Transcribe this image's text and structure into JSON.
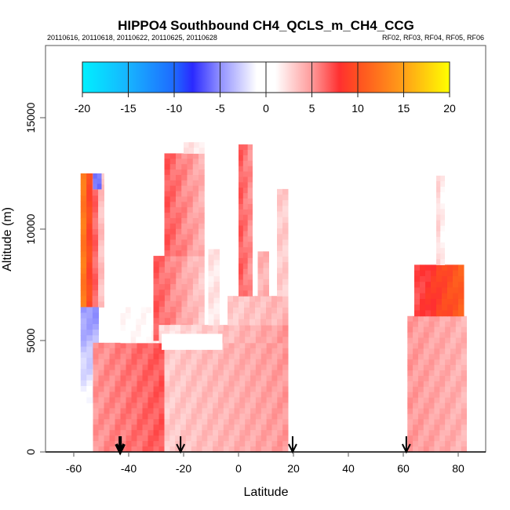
{
  "chart_data": {
    "type": "heatmap",
    "title": "HIPPO4 Southbound CH4_QCLS_m_CH4_CCG",
    "subtitle_left": "20110616, 20110618, 20110622, 20110625, 20110628",
    "subtitle_right": "RF02, RF03, RF04, RF05, RF06",
    "xlabel": "Latitude",
    "ylabel": "Altitude (m)",
    "xlim": [
      -70,
      90
    ],
    "ylim": [
      0,
      18000
    ],
    "x_ticks": [
      -60,
      -40,
      -20,
      0,
      20,
      40,
      60,
      80
    ],
    "x_tick_labels": [
      "-60",
      "-40",
      "-20",
      "0",
      "20",
      "40",
      "60",
      "80"
    ],
    "y_ticks": [
      0,
      5000,
      10000,
      15000
    ],
    "y_tick_labels": [
      "0",
      "5000",
      "10000",
      "15000"
    ],
    "grid": false,
    "colorbar": {
      "placement": "top-inside",
      "min": -20,
      "max": 20,
      "ticks": [
        -20,
        -15,
        -10,
        -5,
        0,
        5,
        10,
        15,
        20
      ],
      "tick_labels": [
        "-20",
        "-15",
        "-10",
        "-5",
        "0",
        "5",
        "10",
        "15",
        "20"
      ],
      "stops": [
        {
          "value": -20,
          "color": "#00f0ff"
        },
        {
          "value": -15,
          "color": "#17b4ff"
        },
        {
          "value": -10,
          "color": "#1e6aff"
        },
        {
          "value": -8,
          "color": "#2a2aff"
        },
        {
          "value": -5,
          "color": "#9090ff"
        },
        {
          "value": -1,
          "color": "#ffffff"
        },
        {
          "value": 1,
          "color": "#ffffff"
        },
        {
          "value": 5,
          "color": "#ff9a9a"
        },
        {
          "value": 8,
          "color": "#ff3030"
        },
        {
          "value": 10,
          "color": "#ff5020"
        },
        {
          "value": 15,
          "color": "#ffa018"
        },
        {
          "value": 20,
          "color": "#ffff00"
        }
      ]
    },
    "flight_markers": [
      {
        "latitude": -43.1,
        "bold": true
      },
      {
        "latitude": -21.1,
        "bold": false
      },
      {
        "latitude": 19.7,
        "bold": false
      },
      {
        "latitude": 61.1,
        "bold": false
      }
    ],
    "field_regions": [
      {
        "name": "south-edge-high",
        "lat": [
          -57.5,
          -49
        ],
        "alt": [
          6500,
          12500
        ],
        "value_a": 14,
        "value_b": 2,
        "gradient": "x"
      },
      {
        "name": "south-edge-blue",
        "lat": [
          -57.5,
          -51
        ],
        "alt": [
          2200,
          6500
        ],
        "value_a": -5,
        "value_b": -1,
        "gradient": "y"
      },
      {
        "name": "south-blue-top",
        "lat": [
          -53,
          -50
        ],
        "alt": [
          11800,
          12500
        ],
        "value_a": -6,
        "value_b": -6,
        "gradient": "x"
      },
      {
        "name": "southern-low",
        "lat": [
          -53,
          -27
        ],
        "alt": [
          0,
          4900
        ],
        "value_a": 5,
        "value_b": 7,
        "gradient": "x"
      },
      {
        "name": "southern-mid-white",
        "lat": [
          -43,
          -28
        ],
        "alt": [
          4900,
          6500
        ],
        "value_a": 1,
        "value_b": 1,
        "gradient": "x"
      },
      {
        "name": "tower-west",
        "lat": [
          -31,
          -12.5
        ],
        "alt": [
          5000,
          8800
        ],
        "value_a": 7,
        "value_b": 3,
        "gradient": "x"
      },
      {
        "name": "tower-west-upper",
        "lat": [
          -27,
          -12.5
        ],
        "alt": [
          8800,
          13400
        ],
        "value_a": 7,
        "value_b": 4,
        "gradient": "x"
      },
      {
        "name": "tower-west-cap",
        "lat": [
          -20,
          -12.5
        ],
        "alt": [
          13400,
          13900
        ],
        "value_a": 2,
        "value_b": 2,
        "gradient": "x"
      },
      {
        "name": "equatorial-low",
        "lat": [
          -27,
          18
        ],
        "alt": [
          0,
          4900
        ],
        "value_a": 3,
        "value_b": 5,
        "gradient": "x"
      },
      {
        "name": "equatorial-band",
        "lat": [
          -29,
          18
        ],
        "alt": [
          4900,
          5700
        ],
        "value_a": 2,
        "value_b": 5,
        "gradient": "x"
      },
      {
        "name": "gap-white",
        "lat": [
          -28,
          -6
        ],
        "alt": [
          4600,
          5300
        ],
        "value_a": 0,
        "value_b": 0,
        "gradient": "x"
      },
      {
        "name": "thin-column",
        "lat": [
          -11,
          -7
        ],
        "alt": [
          5700,
          9100
        ],
        "value_a": 2,
        "value_b": 2,
        "gradient": "x"
      },
      {
        "name": "mid-block",
        "lat": [
          -4,
          18
        ],
        "alt": [
          5700,
          7000
        ],
        "value_a": 3,
        "value_b": 4,
        "gradient": "x"
      },
      {
        "name": "spike-zero",
        "lat": [
          0,
          5
        ],
        "alt": [
          7000,
          13800
        ],
        "value_a": 7,
        "value_b": 5,
        "gradient": "x"
      },
      {
        "name": "spike-ten",
        "lat": [
          7,
          11
        ],
        "alt": [
          7000,
          9000
        ],
        "value_a": 4,
        "value_b": 4,
        "gradient": "x"
      },
      {
        "name": "spike-fifteen",
        "lat": [
          14,
          18
        ],
        "alt": [
          7000,
          11800
        ],
        "value_a": 3,
        "value_b": 3,
        "gradient": "x"
      },
      {
        "name": "arctic-low",
        "lat": [
          61.5,
          83
        ],
        "alt": [
          0,
          6100
        ],
        "value_a": 5,
        "value_b": 4,
        "gradient": "x"
      },
      {
        "name": "arctic-mid",
        "lat": [
          64,
          82
        ],
        "alt": [
          6100,
          8400
        ],
        "value_a": 7,
        "value_b": 11,
        "gradient": "x"
      },
      {
        "name": "arctic-spike",
        "lat": [
          72,
          75
        ],
        "alt": [
          8400,
          12400
        ],
        "value_a": 3,
        "value_b": 1,
        "gradient": "x"
      }
    ]
  }
}
